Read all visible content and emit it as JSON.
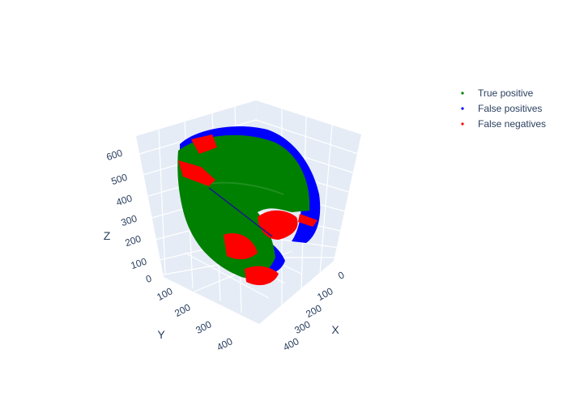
{
  "chart_data": {
    "type": "scatter",
    "projection": "3d",
    "scene": {
      "background": "#e5ecf6",
      "grid": true,
      "grid_color": "#ffffff",
      "axes": {
        "x": {
          "title": "X",
          "ticks": [
            "0",
            "100",
            "200",
            "300",
            "400"
          ],
          "range": [
            0,
            450
          ]
        },
        "y": {
          "title": "Y",
          "ticks": [
            "100",
            "200",
            "300",
            "400"
          ],
          "range": [
            0,
            450
          ]
        },
        "z": {
          "title": "Z",
          "ticks": [
            "0",
            "100",
            "200",
            "300",
            "400",
            "500",
            "600"
          ],
          "range": [
            0,
            650
          ]
        }
      }
    },
    "legend": {
      "placement": "top-right",
      "entries": [
        {
          "name": "True positive",
          "color": "#008000"
        },
        {
          "name": "False positives",
          "color": "#0000ff"
        },
        {
          "name": "False negatives",
          "color": "#ff0000"
        }
      ]
    },
    "series": [
      {
        "name": "True positive",
        "color": "#008000"
      },
      {
        "name": "False positives",
        "color": "#0000ff"
      },
      {
        "name": "False negatives",
        "color": "#ff0000"
      }
    ]
  }
}
